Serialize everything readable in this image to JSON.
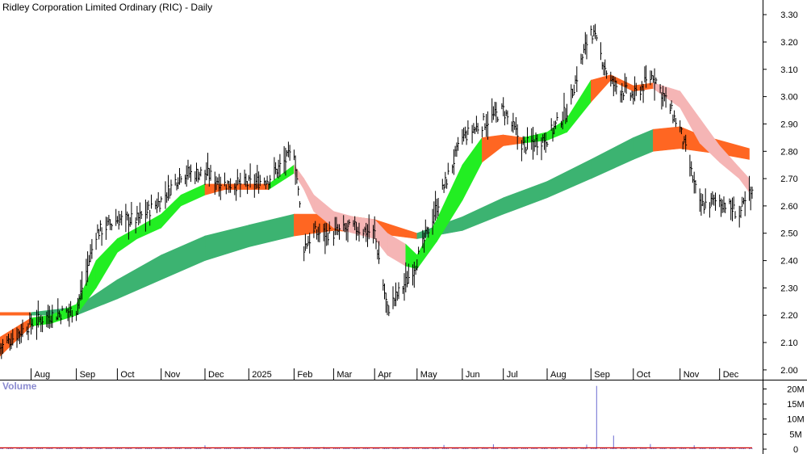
{
  "header": {
    "title": "Ridley Corporation Limited Ordinary (RIC) - Daily"
  },
  "volume_panel": {
    "title": "Volume"
  },
  "colors": {
    "short_band_up": "#22ee22",
    "short_band_down": "#ff6622",
    "short_band_down_light": "#f5b5b5",
    "long_band_up": "#3cb371",
    "long_band_down": "#ff6622",
    "price_bars": "#000000",
    "volume_bars": "#6b6bd0",
    "volume_ma": "#cc0000",
    "grid_line": "#444444"
  },
  "chart_data": {
    "type": "line",
    "title": "Ridley Corporation Limited Ordinary (RIC) - Daily",
    "price_axis": {
      "ylim": [
        1.97,
        3.33
      ],
      "ticks": [
        "3.30",
        "3.20",
        "3.10",
        "3.00",
        "2.90",
        "2.80",
        "2.70",
        "2.60",
        "2.50",
        "2.40",
        "2.30",
        "2.20",
        "2.10",
        "2.00"
      ]
    },
    "volume_axis": {
      "ylim": [
        0,
        22000000
      ],
      "ticks": [
        "20M",
        "15M",
        "10M",
        "5M",
        "0"
      ]
    },
    "x_axis": {
      "labels": [
        "Aug",
        "Sep",
        "Oct",
        "Nov",
        "Dec",
        "2025",
        "Feb",
        "Mar",
        "Apr",
        "May",
        "Jun",
        "Jul",
        "Aug",
        "Sep",
        "Oct",
        "Nov",
        "Dec"
      ],
      "dates": [
        "2024-08-01",
        "2024-09-02",
        "2024-10-01",
        "2024-11-01",
        "2024-12-02",
        "2025-01-02",
        "2025-02-03",
        "2025-03-03",
        "2025-04-01",
        "2025-05-01",
        "2025-06-02",
        "2025-07-01",
        "2025-08-01",
        "2025-09-01",
        "2025-10-01",
        "2025-11-03",
        "2025-12-01"
      ],
      "range": [
        "2024-07-10",
        "2025-12-24"
      ]
    },
    "close_series": {
      "name": "",
      "x": [
        "2024-07-10",
        "2024-08-01",
        "2024-08-15",
        "2024-09-02",
        "2024-09-16",
        "2024-10-01",
        "2024-10-15",
        "2024-11-01",
        "2024-11-15",
        "2024-12-02",
        "2024-12-16",
        "2025-01-02",
        "2025-01-16",
        "2025-02-03",
        "2025-02-10",
        "2025-02-17",
        "2025-03-03",
        "2025-03-17",
        "2025-04-01",
        "2025-04-10",
        "2025-04-23",
        "2025-05-01",
        "2025-05-15",
        "2025-06-02",
        "2025-06-16",
        "2025-07-01",
        "2025-07-15",
        "2025-08-01",
        "2025-08-15",
        "2025-09-01",
        "2025-09-15",
        "2025-10-01",
        "2025-10-15",
        "2025-11-03",
        "2025-11-17",
        "2025-12-01",
        "2025-12-15",
        "2025-12-22"
      ],
      "y": [
        2.08,
        2.17,
        2.2,
        2.22,
        2.5,
        2.55,
        2.55,
        2.62,
        2.72,
        2.72,
        2.68,
        2.68,
        2.7,
        2.8,
        2.45,
        2.5,
        2.5,
        2.52,
        2.5,
        2.22,
        2.32,
        2.4,
        2.6,
        2.85,
        2.9,
        2.95,
        2.82,
        2.85,
        2.95,
        3.25,
        3.05,
        3.0,
        3.08,
        2.88,
        2.6,
        2.62,
        2.57,
        2.64
      ]
    },
    "short_band": {
      "x": [
        "2024-07-10",
        "2024-08-01",
        "2024-08-15",
        "2024-09-02",
        "2024-09-16",
        "2024-10-01",
        "2024-10-15",
        "2024-11-01",
        "2024-11-15",
        "2024-12-02",
        "2024-12-16",
        "2025-01-02",
        "2025-01-16",
        "2025-02-03",
        "2025-02-10",
        "2025-02-17",
        "2025-03-03",
        "2025-03-17",
        "2025-04-01",
        "2025-04-10",
        "2025-04-23",
        "2025-05-01",
        "2025-05-15",
        "2025-06-02",
        "2025-06-16",
        "2025-07-01",
        "2025-07-15",
        "2025-08-01",
        "2025-08-15",
        "2025-09-01",
        "2025-09-15",
        "2025-10-01",
        "2025-10-15",
        "2025-11-03",
        "2025-11-17",
        "2025-12-01",
        "2025-12-15",
        "2025-12-22"
      ],
      "upper": [
        2.12,
        2.19,
        2.2,
        2.24,
        2.4,
        2.48,
        2.52,
        2.57,
        2.64,
        2.68,
        2.68,
        2.68,
        2.68,
        2.75,
        2.7,
        2.64,
        2.58,
        2.56,
        2.55,
        2.5,
        2.46,
        2.42,
        2.55,
        2.75,
        2.85,
        2.86,
        2.85,
        2.87,
        2.92,
        3.06,
        3.08,
        3.04,
        3.05,
        3.02,
        2.92,
        2.82,
        2.74,
        2.7
      ],
      "lower": [
        2.05,
        2.16,
        2.17,
        2.2,
        2.3,
        2.43,
        2.48,
        2.52,
        2.6,
        2.64,
        2.66,
        2.66,
        2.66,
        2.72,
        2.66,
        2.58,
        2.52,
        2.5,
        2.48,
        2.42,
        2.38,
        2.37,
        2.47,
        2.62,
        2.76,
        2.82,
        2.83,
        2.84,
        2.87,
        2.98,
        3.06,
        3.02,
        3.03,
        2.96,
        2.83,
        2.76,
        2.7,
        2.65
      ],
      "state": [
        "down",
        "down",
        "up",
        "up",
        "up",
        "up",
        "up",
        "up",
        "up",
        "up",
        "down",
        "down",
        "down",
        "up",
        "down_light",
        "down_light",
        "down_light",
        "down_light",
        "down_light",
        "down_light",
        "down_light",
        "up",
        "up",
        "up",
        "up",
        "down",
        "down",
        "up",
        "up",
        "up",
        "down",
        "down",
        "down",
        "down_light",
        "down_light",
        "down_light",
        "down_light",
        "down_light"
      ]
    },
    "long_band": {
      "x": [
        "2024-07-10",
        "2024-08-01",
        "2024-09-02",
        "2024-10-01",
        "2024-11-01",
        "2024-12-02",
        "2025-01-02",
        "2025-02-03",
        "2025-03-03",
        "2025-04-01",
        "2025-05-01",
        "2025-06-02",
        "2025-07-01",
        "2025-08-01",
        "2025-09-01",
        "2025-10-01",
        "2025-10-15",
        "2025-11-03",
        "2025-11-17",
        "2025-12-01",
        "2025-12-22"
      ],
      "upper": [
        2.21,
        2.21,
        2.23,
        2.33,
        2.42,
        2.49,
        2.53,
        2.57,
        2.57,
        2.55,
        2.5,
        2.56,
        2.63,
        2.69,
        2.77,
        2.85,
        2.88,
        2.89,
        2.86,
        2.84,
        2.81
      ],
      "lower": [
        2.2,
        2.2,
        2.2,
        2.26,
        2.33,
        2.4,
        2.45,
        2.49,
        2.51,
        2.5,
        2.48,
        2.51,
        2.57,
        2.63,
        2.7,
        2.77,
        2.8,
        2.81,
        2.8,
        2.79,
        2.77
      ],
      "state": [
        "down",
        "down",
        "up",
        "up",
        "up",
        "up",
        "up",
        "up",
        "down",
        "down",
        "down",
        "up",
        "up",
        "up",
        "up",
        "up",
        "up",
        "down",
        "down",
        "down",
        "down"
      ]
    },
    "volume_spikes": {
      "x": [
        "2024-09-05",
        "2024-12-02",
        "2025-02-24",
        "2025-05-20",
        "2025-06-24",
        "2025-08-29",
        "2025-09-05",
        "2025-09-17",
        "2025-10-13",
        "2025-11-13"
      ],
      "values": [
        700000,
        1300000,
        700000,
        1400000,
        1600000,
        1500000,
        21000000,
        4500000,
        1700000,
        1300000
      ]
    },
    "volume_baseline": 400000
  }
}
